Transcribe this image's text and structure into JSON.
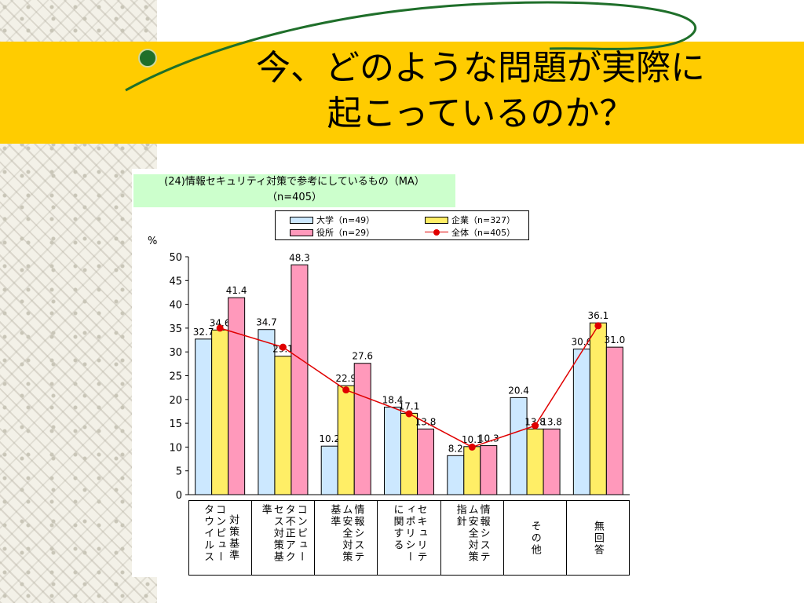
{
  "slide": {
    "title_line1": "今、どのような問題が実際に",
    "title_line2": "起こっているのか？"
  },
  "colors": {
    "banner": "#ffcc00",
    "univ": "#cce8ff",
    "corp": "#ffee66",
    "gov": "#ff99bb",
    "all": "#e00000"
  },
  "icons": {
    "bullet": "green-dotted-bullet-icon"
  },
  "chart_data": {
    "type": "bar",
    "title_line1": "(24)情報セキュリティ対策で参考にしているもの（MA）",
    "title_line2": "（n=405）",
    "ylabel": "%",
    "ylim": [
      0,
      50
    ],
    "yticks": [
      "0",
      "5",
      "10",
      "15",
      "20",
      "25",
      "30",
      "35",
      "40",
      "45",
      "50"
    ],
    "categories": [
      "コンピュータウイルス対策基準",
      "コンピュータ不正アクセス対策基準",
      "情報システム安全対策基準",
      "セキュリティポリシーに関する",
      "情報システム安全対策指針",
      "その他",
      "無回答"
    ],
    "category_columns": [
      [
        "コンピュータウイルス",
        "対策基準"
      ],
      [
        "コンピュータ不正アクセス対策基準"
      ],
      [
        "情報システム安全対策基準"
      ],
      [
        "セキュリティポリシーに関する"
      ],
      [
        "情報システム安全対策指針"
      ],
      [
        "その他"
      ],
      [
        "無回答"
      ]
    ],
    "series": [
      {
        "name": "大学（n=49）",
        "values": [
          32.7,
          34.7,
          10.2,
          18.4,
          8.2,
          20.4,
          30.6
        ]
      },
      {
        "name": "企業（n=327）",
        "values": [
          34.6,
          29.1,
          22.9,
          17.1,
          10.1,
          13.8,
          36.1
        ]
      },
      {
        "name": "役所（n=29）",
        "values": [
          41.4,
          48.3,
          27.6,
          13.8,
          10.3,
          13.8,
          31.0
        ]
      }
    ],
    "line": {
      "name": "全体（n=405）",
      "values": [
        35.0,
        31.0,
        22.0,
        17.0,
        10.0,
        14.5,
        35.5
      ]
    },
    "grid": false,
    "legend_position": "top"
  }
}
